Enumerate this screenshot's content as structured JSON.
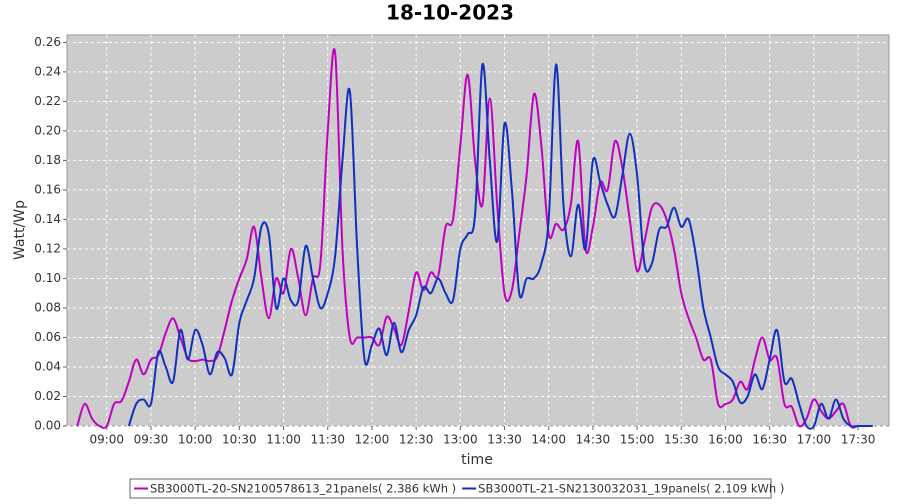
{
  "chart_data": {
    "type": "line",
    "title": "18-10-2023",
    "x_label": "time",
    "y_label": "Watt/Wp",
    "x": [
      "08:40",
      "08:45",
      "08:50",
      "08:55",
      "09:00",
      "09:05",
      "09:10",
      "09:15",
      "09:20",
      "09:25",
      "09:30",
      "09:35",
      "09:40",
      "09:45",
      "09:50",
      "09:55",
      "10:00",
      "10:05",
      "10:10",
      "10:15",
      "10:20",
      "10:25",
      "10:30",
      "10:35",
      "10:40",
      "10:45",
      "10:50",
      "10:55",
      "11:00",
      "11:05",
      "11:10",
      "11:15",
      "11:20",
      "11:25",
      "11:30",
      "11:35",
      "11:40",
      "11:45",
      "11:50",
      "11:55",
      "12:00",
      "12:05",
      "12:10",
      "12:15",
      "12:20",
      "12:25",
      "12:30",
      "12:35",
      "12:40",
      "12:45",
      "12:50",
      "12:55",
      "13:00",
      "13:05",
      "13:10",
      "13:15",
      "13:20",
      "13:25",
      "13:30",
      "13:35",
      "13:40",
      "13:45",
      "13:50",
      "13:55",
      "14:00",
      "14:05",
      "14:10",
      "14:15",
      "14:20",
      "14:25",
      "14:30",
      "14:35",
      "14:40",
      "14:45",
      "14:50",
      "14:55",
      "15:00",
      "15:05",
      "15:10",
      "15:15",
      "15:20",
      "15:25",
      "15:30",
      "15:35",
      "15:40",
      "15:45",
      "15:50",
      "15:55",
      "16:00",
      "16:05",
      "16:10",
      "16:15",
      "16:20",
      "16:25",
      "16:30",
      "16:35",
      "16:40",
      "16:45",
      "16:50",
      "16:55",
      "17:00",
      "17:05",
      "17:10",
      "17:15",
      "17:20",
      "17:25",
      "17:30",
      "17:35",
      "17:40",
      "17:45",
      "17:50"
    ],
    "series": [
      {
        "name": "SB3000TL-20-SN2100578613_21panels( 2.386 kWh )",
        "color": "#c000c0",
        "values": [
          0,
          0.015,
          0.005,
          0,
          0,
          0.015,
          0.017,
          0.03,
          0.045,
          0.035,
          0.045,
          0.048,
          0.063,
          0.073,
          0.06,
          0.046,
          0.044,
          0.045,
          0.044,
          0.047,
          0.065,
          0.085,
          0.1,
          0.113,
          0.135,
          0.1,
          0.073,
          0.1,
          0.09,
          0.12,
          0.1,
          0.075,
          0.1,
          0.11,
          0.2,
          0.253,
          0.12,
          0.06,
          0.06,
          0.06,
          0.06,
          0.055,
          0.074,
          0.066,
          0.055,
          0.078,
          0.104,
          0.092,
          0.104,
          0.102,
          0.135,
          0.14,
          0.19,
          0.238,
          0.18,
          0.15,
          0.222,
          0.15,
          0.09,
          0.092,
          0.13,
          0.17,
          0.225,
          0.19,
          0.13,
          0.137,
          0.133,
          0.15,
          0.193,
          0.12,
          0.135,
          0.165,
          0.16,
          0.193,
          0.175,
          0.14,
          0.105,
          0.125,
          0.148,
          0.15,
          0.14,
          0.12,
          0.09,
          0.073,
          0.06,
          0.045,
          0.045,
          0.015,
          0.015,
          0.018,
          0.03,
          0.025,
          0.045,
          0.06,
          0.045,
          0.046,
          0.015,
          0.013,
          0,
          0.005,
          0.018,
          0.01,
          0.005,
          0.01,
          0.015,
          0,
          0,
          0,
          null,
          null,
          null
        ]
      },
      {
        "name": "SB3000TL-21-SN2130032031_19panels( 2.109 kWh )",
        "color": "#1030c0",
        "values": [
          null,
          null,
          null,
          null,
          null,
          null,
          null,
          0,
          0.015,
          0.018,
          0.015,
          0.05,
          0.04,
          0.03,
          0.065,
          0.045,
          0.065,
          0.055,
          0.035,
          0.05,
          0.046,
          0.035,
          0.07,
          0.085,
          0.1,
          0.135,
          0.13,
          0.08,
          0.1,
          0.085,
          0.085,
          0.122,
          0.1,
          0.08,
          0.09,
          0.115,
          0.18,
          0.227,
          0.12,
          0.045,
          0.055,
          0.066,
          0.048,
          0.07,
          0.05,
          0.065,
          0.075,
          0.094,
          0.09,
          0.1,
          0.09,
          0.085,
          0.12,
          0.13,
          0.143,
          0.245,
          0.18,
          0.125,
          0.205,
          0.16,
          0.09,
          0.1,
          0.1,
          0.11,
          0.14,
          0.245,
          0.15,
          0.115,
          0.15,
          0.12,
          0.18,
          0.165,
          0.15,
          0.142,
          0.17,
          0.198,
          0.17,
          0.11,
          0.11,
          0.133,
          0.135,
          0.148,
          0.135,
          0.14,
          0.115,
          0.08,
          0.06,
          0.04,
          0.035,
          0.03,
          0.016,
          0.02,
          0.035,
          0.025,
          0.045,
          0.065,
          0.03,
          0.032,
          0.015,
          0,
          0,
          0.015,
          0.005,
          0.018,
          0.005,
          0,
          0,
          0,
          0,
          null,
          null
        ]
      }
    ],
    "xlim": [
      "08:33",
      "17:51"
    ],
    "xticks": [
      "09:00",
      "09:30",
      "10:00",
      "10:30",
      "11:00",
      "11:30",
      "12:00",
      "12:30",
      "13:00",
      "13:30",
      "14:00",
      "14:30",
      "15:00",
      "15:30",
      "16:00",
      "16:30",
      "17:00",
      "17:30"
    ],
    "ylim": [
      0,
      0.265
    ],
    "yticks": [
      {
        "value": 0,
        "label": "0.00"
      },
      0.02,
      0.04,
      0.06,
      0.08,
      {
        "value": 0.1,
        "label": "0.10"
      },
      0.12,
      0.14,
      0.16,
      0.18,
      {
        "value": 0.2,
        "label": "0.20"
      },
      0.22,
      0.24,
      0.26
    ],
    "grid": true,
    "legend": "bottom"
  }
}
